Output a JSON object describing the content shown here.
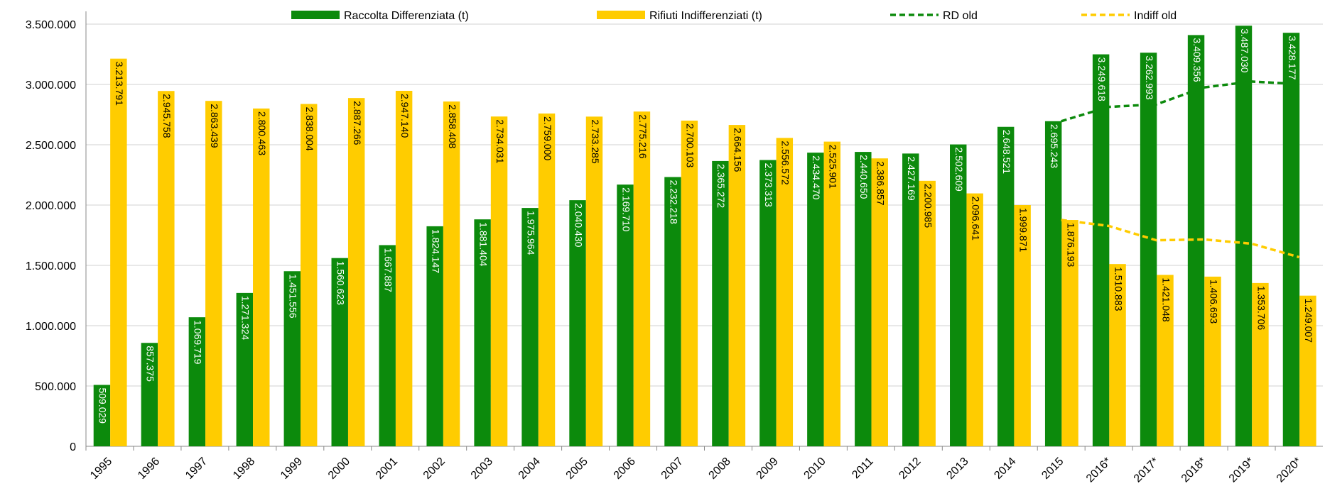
{
  "chart_data": {
    "type": "bar",
    "categories": [
      "1995",
      "1996",
      "1997",
      "1998",
      "1999",
      "2000",
      "2001",
      "2002",
      "2003",
      "2004",
      "2005",
      "2006",
      "2007",
      "2008",
      "2009",
      "2010",
      "2011",
      "2012",
      "2013",
      "2014",
      "2015",
      "2016*",
      "2017*",
      "2018*",
      "2019*",
      "2020*"
    ],
    "series": [
      {
        "name": "Raccolta Differenziata (t)",
        "type": "bar",
        "color": "#0c8a0c",
        "label_color": "#ffffff",
        "values": [
          509029,
          857375,
          1069719,
          1271324,
          1451556,
          1560623,
          1667887,
          1824147,
          1881404,
          1975964,
          2040430,
          2169710,
          2232218,
          2365272,
          2373313,
          2434470,
          2440650,
          2427169,
          2502609,
          2648521,
          2695243,
          3249618,
          3262993,
          3409356,
          3487030,
          3428177
        ],
        "value_labels": [
          "509.029",
          "857.375",
          "1.069.719",
          "1.271.324",
          "1.451.556",
          "1.560.623",
          "1.667.887",
          "1.824.147",
          "1.881.404",
          "1.975.964",
          "2.040.430",
          "2.169.710",
          "2.232.218",
          "2.365.272",
          "2.373.313",
          "2.434.470",
          "2.440.650",
          "2.427.169",
          "2.502.609",
          "2.648.521",
          "2.695.243",
          "3.249.618",
          "3.262.993",
          "3.409.356",
          "3.487.030",
          "3.428.177"
        ]
      },
      {
        "name": "Rifiuti Indifferenziati (t)",
        "type": "bar",
        "color": "#ffcc00",
        "label_color": "#000000",
        "values": [
          3213791,
          2945758,
          2863439,
          2800463,
          2838004,
          2887266,
          2947140,
          2858408,
          2734031,
          2759000,
          2733285,
          2775216,
          2700103,
          2664156,
          2556572,
          2525901,
          2386857,
          2200985,
          2096641,
          1999871,
          1876193,
          1510883,
          1421048,
          1406693,
          1353706,
          1249007
        ],
        "value_labels": [
          "3.213.791",
          "2.945.758",
          "2.863.439",
          "2.800.463",
          "2.838.004",
          "2.887.266",
          "2.947.140",
          "2.858.408",
          "2.734.031",
          "2.759.000",
          "2.733.285",
          "2.775.216",
          "2.700.103",
          "2.664.156",
          "2.556.572",
          "2.525.901",
          "2.386.857",
          "2.200.985",
          "2.096.641",
          "1.999.871",
          "1.876.193",
          "1.510.883",
          "1.421.048",
          "1.406.693",
          "1.353.706",
          "1.249.007"
        ]
      },
      {
        "name": "RD old",
        "type": "line",
        "color": "#0c8a0c",
        "values": [
          null,
          null,
          null,
          null,
          null,
          null,
          null,
          null,
          null,
          null,
          null,
          null,
          null,
          null,
          null,
          null,
          null,
          null,
          null,
          null,
          2695243,
          2814000,
          2835000,
          2975000,
          3024000,
          3003000
        ]
      },
      {
        "name": "Indiff old",
        "type": "line",
        "color": "#ffcc00",
        "values": [
          null,
          null,
          null,
          null,
          null,
          null,
          null,
          null,
          null,
          null,
          null,
          null,
          null,
          null,
          null,
          null,
          null,
          null,
          null,
          null,
          1876193,
          1827000,
          1708000,
          1715000,
          1680000,
          1568000
        ]
      }
    ],
    "ylim": [
      0,
      3500000
    ],
    "yticks": [
      0,
      {
        "value": 500000,
        "label": "500.000"
      },
      {
        "value": 1000000,
        "label": "1.000.000"
      },
      {
        "value": 1500000,
        "label": "1.500.000"
      },
      {
        "value": 2000000,
        "label": "2.000.000"
      },
      {
        "value": 2500000,
        "label": "2.500.000"
      },
      {
        "value": 3000000,
        "label": "3.000.000"
      },
      {
        "value": 3500000,
        "label": "3.500.000"
      }
    ],
    "grid": true,
    "legend": "top"
  }
}
